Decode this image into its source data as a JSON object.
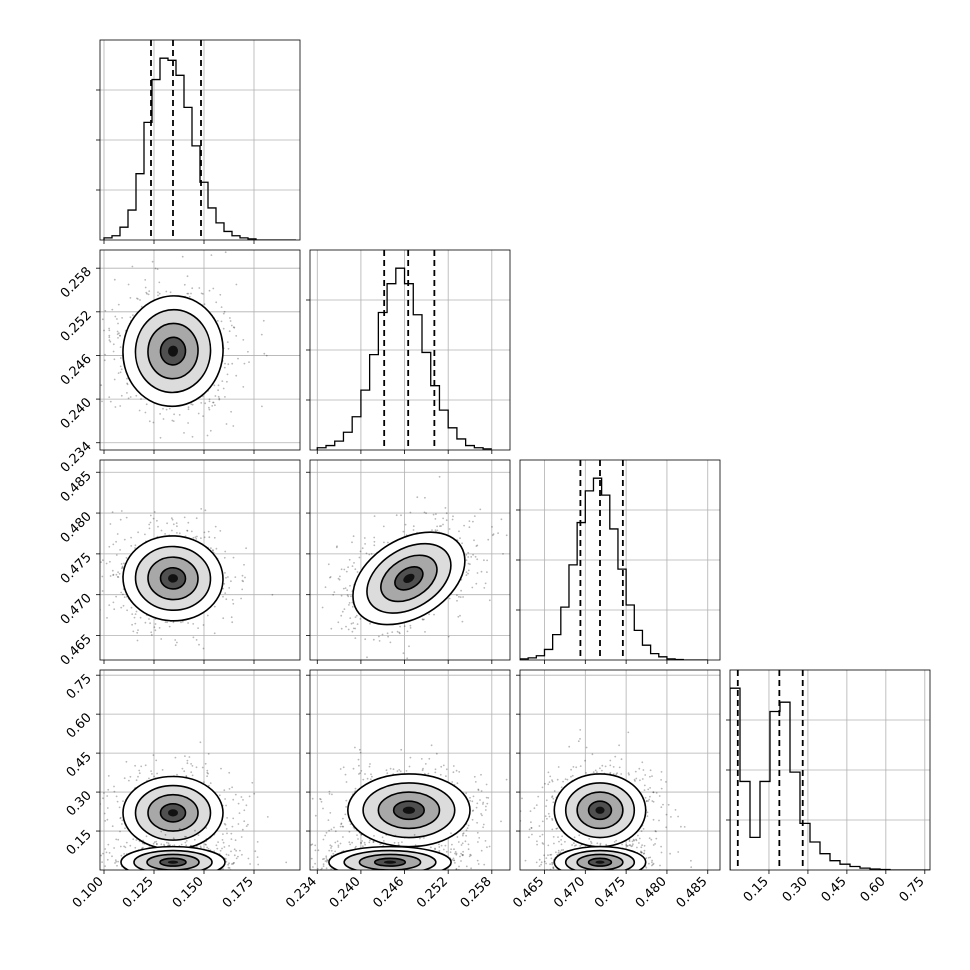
{
  "chart_data": {
    "type": "corner",
    "title": "",
    "parameters": [
      {
        "ticks": [
          0.1,
          0.125,
          0.15,
          0.175
        ],
        "tick_labels": [
          "0.100",
          "0.125",
          "0.150",
          "0.175"
        ],
        "range": [
          0.098,
          0.198
        ],
        "quantiles": [
          0.1235,
          0.1345,
          0.1485
        ]
      },
      {
        "ticks": [
          0.234,
          0.24,
          0.246,
          0.252,
          0.258
        ],
        "tick_labels": [
          "0.234",
          "0.240",
          "0.246",
          "0.252",
          "0.258"
        ],
        "range": [
          0.233,
          0.2605
        ],
        "quantiles": [
          0.2432,
          0.2465,
          0.2501
        ]
      },
      {
        "ticks": [
          0.465,
          0.47,
          0.475,
          0.48,
          0.485
        ],
        "tick_labels": [
          "0.465",
          "0.470",
          "0.475",
          "0.480",
          "0.485"
        ],
        "range": [
          0.462,
          0.4865
        ],
        "quantiles": [
          0.4694,
          0.4718,
          0.4746
        ]
      },
      {
        "ticks": [
          0.15,
          0.3,
          0.45,
          0.6,
          0.75
        ],
        "tick_labels": [
          "0.15",
          "0.30",
          "0.45",
          "0.60",
          "0.75"
        ],
        "range": [
          0.0,
          0.77
        ],
        "quantiles": [
          0.03,
          0.19,
          0.28
        ]
      }
    ],
    "histograms": [
      {
        "bins": [
          0.1,
          0.104,
          0.108,
          0.112,
          0.116,
          0.12,
          0.124,
          0.128,
          0.132,
          0.136,
          0.14,
          0.144,
          0.148,
          0.152,
          0.156,
          0.16,
          0.164,
          0.168,
          0.172,
          0.176,
          0.18,
          0.184,
          0.188,
          0.192,
          0.196
        ],
        "counts": [
          1,
          2,
          6,
          14,
          31,
          55,
          75,
          85,
          84,
          77,
          62,
          44,
          27,
          15,
          8,
          4,
          2,
          1,
          0.5,
          0,
          0,
          0,
          0,
          0
        ]
      },
      {
        "bins": [
          0.234,
          0.2352,
          0.2364,
          0.2376,
          0.2388,
          0.24,
          0.2412,
          0.2424,
          0.2436,
          0.2448,
          0.246,
          0.2472,
          0.2484,
          0.2496,
          0.2508,
          0.252,
          0.2532,
          0.2544,
          0.2556,
          0.2568,
          0.258
        ],
        "counts": [
          1,
          2,
          4,
          8,
          15,
          27,
          43,
          62,
          75,
          82,
          75,
          61,
          44,
          29,
          18,
          10,
          5,
          2,
          1,
          0.5
        ]
      },
      {
        "bins": [
          0.462,
          0.463,
          0.464,
          0.465,
          0.466,
          0.467,
          0.468,
          0.469,
          0.47,
          0.471,
          0.472,
          0.473,
          0.474,
          0.475,
          0.476,
          0.477,
          0.478,
          0.479,
          0.48,
          0.481,
          0.482,
          0.483,
          0.484,
          0.485
        ],
        "counts": [
          0.5,
          1,
          2,
          5,
          12,
          25,
          45,
          65,
          80,
          86,
          78,
          62,
          43,
          26,
          14,
          7,
          3,
          1.5,
          0.5,
          0.2,
          0,
          0,
          0
        ]
      },
      {
        "bins": [
          0.0,
          0.0385,
          0.077,
          0.1155,
          0.154,
          0.1925,
          0.231,
          0.2695,
          0.308,
          0.3465,
          0.385,
          0.4235,
          0.462,
          0.5005,
          0.539,
          0.5775,
          0.616,
          0.6545,
          0.693,
          0.7315,
          0.77
        ],
        "counts": [
          78,
          38,
          14,
          38,
          68,
          72,
          42,
          20,
          12,
          7,
          4,
          2.5,
          1.5,
          0.8,
          0.4,
          0.2,
          0,
          0,
          0,
          0
        ]
      }
    ],
    "joint": [
      {
        "x": 1,
        "y": 0,
        "blobs": [
          {
            "cx": 0.1345,
            "cy": 0.2466,
            "sx": 0.0125,
            "sy": 0.0038,
            "rot": 0.1
          }
        ]
      },
      {
        "x": 2,
        "y": 0,
        "blobs": [
          {
            "cx": 0.1345,
            "cy": 0.472,
            "sx": 0.0125,
            "sy": 0.0026,
            "rot": 0.05
          }
        ]
      },
      {
        "x": 2,
        "y": 1,
        "blobs": [
          {
            "cx": 0.2466,
            "cy": 0.472,
            "sx": 0.0042,
            "sy": 0.0024,
            "rot": -0.55
          }
        ]
      },
      {
        "x": 3,
        "y": 0,
        "blobs": [
          {
            "cx": 0.1345,
            "cy": 0.22,
            "sx": 0.0125,
            "sy": 0.07,
            "rot": 0.0
          },
          {
            "cx": 0.1345,
            "cy": 0.03,
            "sx": 0.013,
            "sy": 0.03,
            "rot": 0.0
          }
        ]
      },
      {
        "x": 3,
        "y": 1,
        "blobs": [
          {
            "cx": 0.2466,
            "cy": 0.23,
            "sx": 0.0042,
            "sy": 0.07,
            "rot": 0.0
          },
          {
            "cx": 0.244,
            "cy": 0.03,
            "sx": 0.0042,
            "sy": 0.03,
            "rot": 0.0
          }
        ]
      },
      {
        "x": 3,
        "y": 2,
        "blobs": [
          {
            "cx": 0.4718,
            "cy": 0.23,
            "sx": 0.0028,
            "sy": 0.07,
            "rot": 0.0
          },
          {
            "cx": 0.4718,
            "cy": 0.03,
            "sx": 0.0028,
            "sy": 0.03,
            "rot": 0.0
          }
        ]
      }
    ],
    "grid": true
  }
}
